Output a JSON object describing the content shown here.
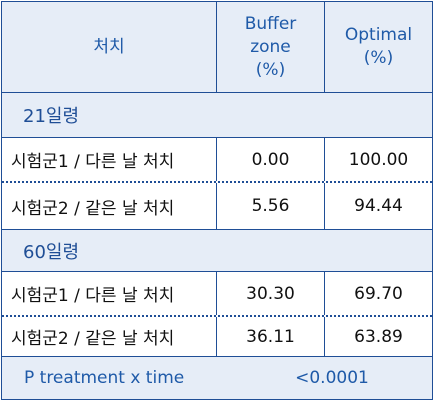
{
  "header": {
    "col1": "처치",
    "col2": "Buffer\nzone\n(%)",
    "col3": "Optimal\n(%)"
  },
  "groups": [
    {
      "label": "21일령",
      "rows": [
        {
          "treatment": "시험군1 / 다른 날 처치",
          "buffer": "0.00",
          "optimal": "100.00"
        },
        {
          "treatment": "시험군2 / 같은 날 처치",
          "buffer": "5.56",
          "optimal": "94.44"
        }
      ]
    },
    {
      "label": "60일령",
      "rows": [
        {
          "treatment": "시험군1 / 다른 날 처치",
          "buffer": "30.30",
          "optimal": "69.70"
        },
        {
          "treatment": "시험군2 / 같은 날 처치",
          "buffer": "36.11",
          "optimal": "63.89"
        }
      ]
    }
  ],
  "footer": {
    "label": "P treatment x time",
    "value": "<0.0001"
  }
}
